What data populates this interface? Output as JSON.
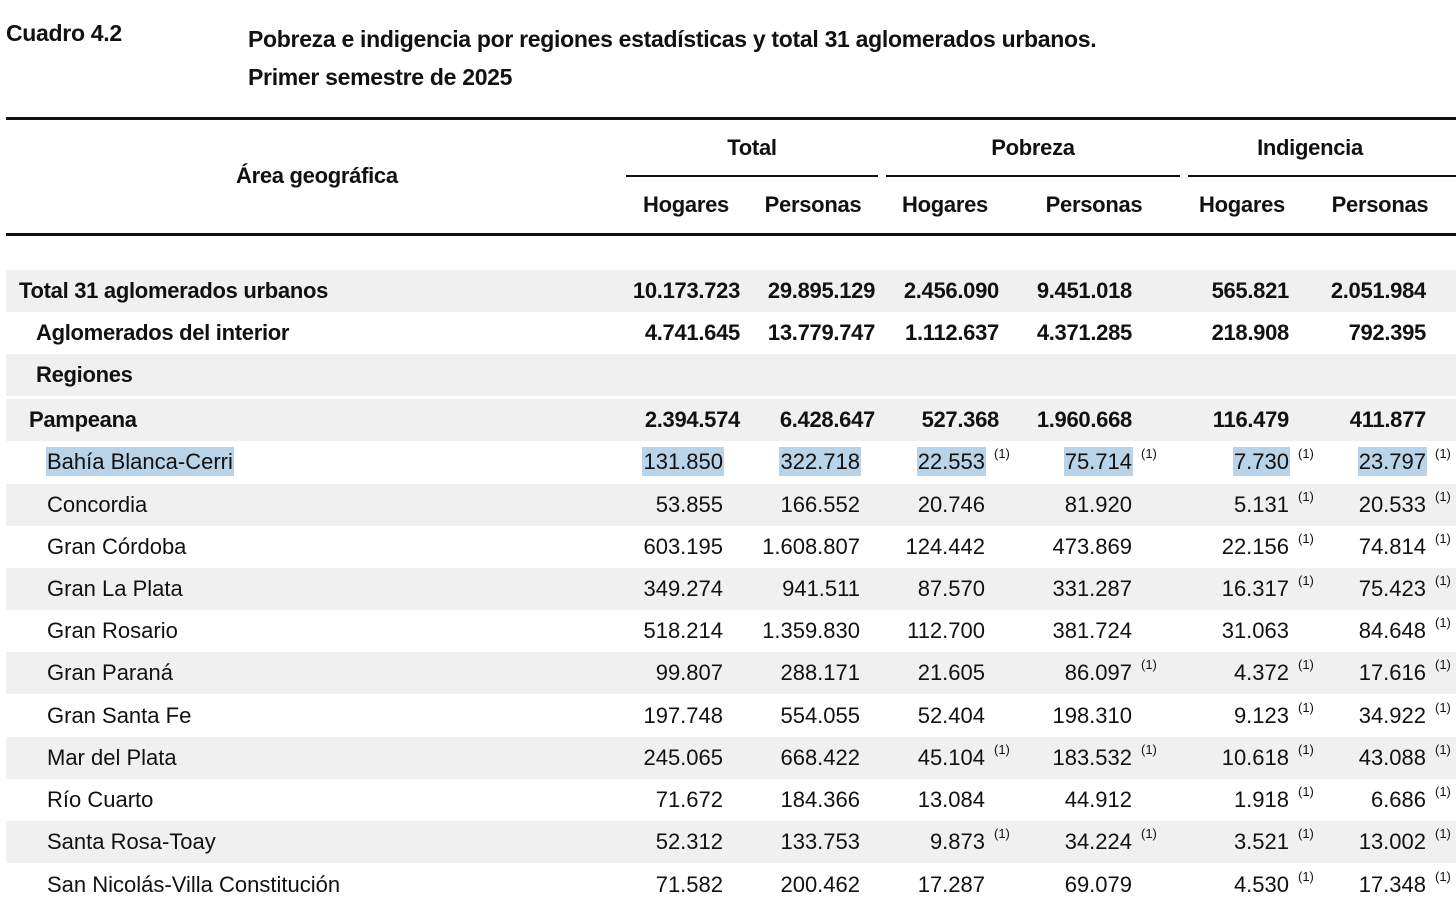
{
  "header": {
    "cuadro": "Cuadro 4.2",
    "title_line1": "Pobreza e indigencia por regiones estadísticas y total 31 aglomerados urbanos.",
    "title_line2": "Primer semestre de 2025"
  },
  "columns": {
    "area": "Área geográfica",
    "groups": [
      "Total",
      "Pobreza",
      "Indigencia"
    ],
    "sub": [
      "Hogares",
      "Personas",
      "Hogares",
      "Personas",
      "Hogares",
      "Personas"
    ]
  },
  "note_mark": "(1)",
  "rows": [
    {
      "name": "Total 31 aglomerados urbanos",
      "values": [
        "10.173.723",
        "29.895.129",
        "2.456.090",
        "9.451.018",
        "565.821",
        "2.051.984"
      ],
      "notes": [
        false,
        false,
        false,
        false,
        false,
        false
      ]
    },
    {
      "name": "Aglomerados del interior",
      "values": [
        "4.741.645",
        "13.779.747",
        "1.112.637",
        "4.371.285",
        "218.908",
        "792.395"
      ],
      "notes": [
        false,
        false,
        false,
        false,
        false,
        false
      ]
    },
    {
      "name": "Regiones",
      "values": [
        "",
        "",
        "",
        "",
        "",
        ""
      ],
      "notes": [
        false,
        false,
        false,
        false,
        false,
        false
      ]
    },
    {
      "name": "Pampeana",
      "values": [
        "2.394.574",
        "6.428.647",
        "527.368",
        "1.960.668",
        "116.479",
        "411.877"
      ],
      "notes": [
        false,
        false,
        false,
        false,
        false,
        false
      ]
    },
    {
      "name": "Bahía Blanca-Cerri",
      "values": [
        "131.850",
        "322.718",
        "22.553",
        "75.714",
        "7.730",
        "23.797"
      ],
      "notes": [
        false,
        false,
        true,
        true,
        true,
        true
      ]
    },
    {
      "name": "Concordia",
      "values": [
        "53.855",
        "166.552",
        "20.746",
        "81.920",
        "5.131",
        "20.533"
      ],
      "notes": [
        false,
        false,
        false,
        false,
        true,
        true
      ]
    },
    {
      "name": "Gran Córdoba",
      "values": [
        "603.195",
        "1.608.807",
        "124.442",
        "473.869",
        "22.156",
        "74.814"
      ],
      "notes": [
        false,
        false,
        false,
        false,
        true,
        true
      ]
    },
    {
      "name": "Gran La Plata",
      "values": [
        "349.274",
        "941.511",
        "87.570",
        "331.287",
        "16.317",
        "75.423"
      ],
      "notes": [
        false,
        false,
        false,
        false,
        true,
        true
      ]
    },
    {
      "name": "Gran Rosario",
      "values": [
        "518.214",
        "1.359.830",
        "112.700",
        "381.724",
        "31.063",
        "84.648"
      ],
      "notes": [
        false,
        false,
        false,
        false,
        false,
        true
      ]
    },
    {
      "name": "Gran Paraná",
      "values": [
        "99.807",
        "288.171",
        "21.605",
        "86.097",
        "4.372",
        "17.616"
      ],
      "notes": [
        false,
        false,
        false,
        true,
        true,
        true
      ]
    },
    {
      "name": "Gran Santa Fe",
      "values": [
        "197.748",
        "554.055",
        "52.404",
        "198.310",
        "9.123",
        "34.922"
      ],
      "notes": [
        false,
        false,
        false,
        false,
        true,
        true
      ]
    },
    {
      "name": "Mar del Plata",
      "values": [
        "245.065",
        "668.422",
        "45.104",
        "183.532",
        "10.618",
        "43.088"
      ],
      "notes": [
        false,
        false,
        true,
        true,
        true,
        true
      ]
    },
    {
      "name": "Río Cuarto",
      "values": [
        "71.672",
        "184.366",
        "13.084",
        "44.912",
        "1.918",
        "6.686"
      ],
      "notes": [
        false,
        false,
        false,
        false,
        true,
        true
      ]
    },
    {
      "name": "Santa Rosa-Toay",
      "values": [
        "52.312",
        "133.753",
        "9.873",
        "34.224",
        "3.521",
        "13.002"
      ],
      "notes": [
        false,
        false,
        true,
        true,
        true,
        true
      ]
    },
    {
      "name": "San Nicolás-Villa Constitución",
      "values": [
        "71.582",
        "200.462",
        "17.287",
        "69.079",
        "4.530",
        "17.348"
      ],
      "notes": [
        false,
        false,
        false,
        false,
        true,
        true
      ]
    }
  ]
}
